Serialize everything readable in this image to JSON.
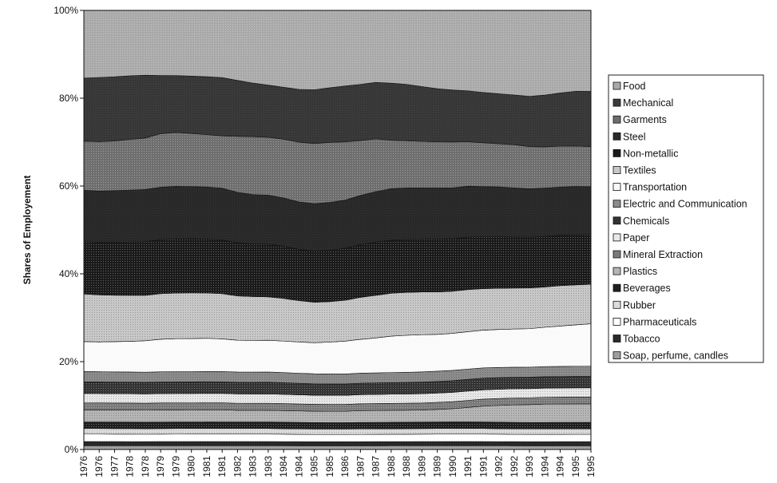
{
  "chart_data": {
    "type": "area",
    "stacked": true,
    "normalized_percent": true,
    "title": "",
    "xlabel": "",
    "ylabel": "Shares of Employement",
    "ylim": [
      0,
      100
    ],
    "y_ticks": [
      "0%",
      "20%",
      "40%",
      "60%",
      "80%",
      "100%"
    ],
    "grid": false,
    "legend_position": "right",
    "x": [
      "1976",
      "1976",
      "1977",
      "1978",
      "1978",
      "1979",
      "1979",
      "1980",
      "1981",
      "1981",
      "1982",
      "1983",
      "1983",
      "1984",
      "1984",
      "1985",
      "1985",
      "1986",
      "1987",
      "1987",
      "1988",
      "1988",
      "1989",
      "1989",
      "1990",
      "1991",
      "1991",
      "1992",
      "1992",
      "1993",
      "1994",
      "1994",
      "1995",
      "1995"
    ],
    "series": [
      {
        "name": "Food",
        "color": "#a9a9a9",
        "values": [
          14.5,
          14.4,
          14.3,
          14.1,
          14.0,
          14.0,
          14.0,
          14.1,
          14.2,
          14.4,
          15.0,
          15.6,
          16.0,
          16.6,
          17.2,
          17.4,
          17.0,
          16.6,
          16.2,
          15.7,
          15.8,
          16.0,
          16.4,
          16.8,
          17.0,
          17.2,
          17.6,
          18.0,
          18.4,
          18.8,
          18.5,
          18.0,
          17.6,
          17.6
        ]
      },
      {
        "name": "Mechanical",
        "color": "#3a3a3a",
        "values": [
          13.5,
          13.8,
          13.8,
          13.7,
          13.6,
          12.5,
          12.2,
          12.3,
          12.4,
          12.5,
          12.0,
          11.5,
          11.2,
          11.2,
          11.5,
          11.8,
          12.0,
          12.3,
          12.3,
          12.3,
          12.4,
          12.2,
          11.8,
          11.4,
          11.1,
          10.9,
          10.8,
          10.8,
          10.8,
          11.0,
          11.3,
          11.6,
          11.9,
          12.0
        ]
      },
      {
        "name": "Garments",
        "color": "#6e6e6e",
        "values": [
          10.5,
          10.6,
          10.7,
          10.9,
          11.1,
          11.5,
          11.6,
          11.4,
          11.2,
          11.2,
          12.0,
          12.4,
          12.4,
          12.7,
          13.0,
          13.2,
          13.2,
          12.8,
          12.0,
          11.5,
          10.5,
          10.2,
          10.0,
          9.9,
          9.8,
          9.5,
          9.4,
          9.3,
          9.4,
          9.2,
          9.0,
          8.9,
          8.8,
          8.7
        ]
      },
      {
        "name": "Steel",
        "color": "#2b2b2b",
        "values": [
          11.0,
          11.0,
          11.1,
          11.2,
          11.3,
          11.3,
          11.3,
          11.2,
          11.2,
          11.1,
          10.8,
          10.6,
          10.5,
          10.4,
          10.3,
          10.4,
          10.5,
          10.6,
          10.8,
          11.0,
          11.2,
          11.2,
          11.1,
          11.0,
          10.9,
          10.9,
          10.8,
          10.8,
          10.7,
          10.6,
          10.6,
          10.5,
          10.5,
          10.4
        ]
      },
      {
        "name": "Non-metallic",
        "color": "#1a1a1a",
        "values": [
          11.2,
          11.3,
          11.4,
          11.5,
          11.6,
          11.6,
          11.6,
          11.6,
          11.5,
          11.5,
          11.4,
          11.3,
          11.3,
          11.3,
          11.2,
          11.2,
          11.3,
          11.4,
          11.5,
          11.6,
          11.5,
          11.4,
          11.3,
          11.3,
          11.2,
          11.2,
          11.1,
          11.1,
          11.1,
          11.1,
          11.0,
          11.0,
          10.9,
          10.8
        ]
      },
      {
        "name": "Textiles",
        "color": "#c8c8c8",
        "values": [
          10.2,
          10.1,
          10.0,
          9.9,
          9.8,
          9.8,
          9.8,
          9.8,
          9.7,
          9.7,
          9.5,
          9.4,
          9.3,
          9.2,
          9.0,
          8.9,
          8.9,
          9.0,
          9.2,
          9.3,
          9.3,
          9.3,
          9.2,
          9.1,
          9.0,
          9.0,
          8.9,
          8.9,
          8.9,
          8.9,
          8.8,
          8.8,
          8.7,
          8.6
        ]
      },
      {
        "name": "Transportation",
        "color": "#fafafa",
        "values": [
          6.4,
          6.4,
          6.5,
          6.6,
          6.8,
          7.0,
          7.1,
          7.1,
          7.1,
          7.0,
          6.8,
          6.8,
          6.8,
          6.8,
          6.8,
          6.8,
          7.0,
          7.2,
          7.4,
          7.6,
          7.9,
          8.0,
          8.0,
          7.9,
          7.9,
          8.0,
          8.1,
          8.2,
          8.3,
          8.4,
          8.6,
          8.8,
          9.0,
          9.2
        ]
      },
      {
        "name": "Electric and Communication",
        "color": "#8c8c8c",
        "values": [
          2.2,
          2.2,
          2.2,
          2.2,
          2.2,
          2.2,
          2.2,
          2.2,
          2.2,
          2.2,
          2.2,
          2.2,
          2.2,
          2.2,
          2.2,
          2.2,
          2.2,
          2.2,
          2.2,
          2.2,
          2.2,
          2.2,
          2.2,
          2.2,
          2.2,
          2.2,
          2.2,
          2.2,
          2.2,
          2.2,
          2.2,
          2.2,
          2.2,
          2.2
        ]
      },
      {
        "name": "Chemicals",
        "color": "#333333",
        "values": [
          2.5,
          2.5,
          2.5,
          2.5,
          2.5,
          2.5,
          2.5,
          2.5,
          2.5,
          2.5,
          2.5,
          2.5,
          2.5,
          2.5,
          2.5,
          2.5,
          2.5,
          2.5,
          2.5,
          2.5,
          2.5,
          2.5,
          2.5,
          2.5,
          2.5,
          2.5,
          2.5,
          2.5,
          2.5,
          2.5,
          2.5,
          2.5,
          2.5,
          2.5
        ]
      },
      {
        "name": "Paper",
        "color": "#e8e8e8",
        "values": [
          2.0,
          2.0,
          2.0,
          2.0,
          2.0,
          2.0,
          2.0,
          2.0,
          2.0,
          2.0,
          2.0,
          2.0,
          2.0,
          2.0,
          2.0,
          2.0,
          2.0,
          2.0,
          2.0,
          2.0,
          2.0,
          2.0,
          2.0,
          2.0,
          2.0,
          2.0,
          2.0,
          2.0,
          2.0,
          2.0,
          2.0,
          2.0,
          2.0,
          2.0
        ]
      },
      {
        "name": "Mineral Extraction",
        "color": "#7a7a7a",
        "values": [
          1.5,
          1.5,
          1.5,
          1.5,
          1.5,
          1.5,
          1.5,
          1.5,
          1.5,
          1.5,
          1.5,
          1.5,
          1.5,
          1.5,
          1.5,
          1.5,
          1.5,
          1.5,
          1.5,
          1.5,
          1.5,
          1.5,
          1.5,
          1.5,
          1.5,
          1.5,
          1.5,
          1.5,
          1.5,
          1.5,
          1.5,
          1.5,
          1.5,
          1.5
        ]
      },
      {
        "name": "Plastics",
        "color": "#b5b5b5",
        "values": [
          2.6,
          2.6,
          2.6,
          2.6,
          2.6,
          2.6,
          2.6,
          2.6,
          2.6,
          2.6,
          2.5,
          2.5,
          2.5,
          2.5,
          2.5,
          2.5,
          2.5,
          2.5,
          2.6,
          2.6,
          2.6,
          2.6,
          2.6,
          2.7,
          2.8,
          3.1,
          3.4,
          3.6,
          3.8,
          3.9,
          4.0,
          4.0,
          4.0,
          4.0
        ]
      },
      {
        "name": "Beverages",
        "color": "#1f1f1f",
        "values": [
          1.4,
          1.4,
          1.4,
          1.4,
          1.4,
          1.4,
          1.4,
          1.4,
          1.4,
          1.4,
          1.4,
          1.4,
          1.4,
          1.4,
          1.4,
          1.4,
          1.4,
          1.4,
          1.4,
          1.4,
          1.4,
          1.4,
          1.4,
          1.4,
          1.4,
          1.4,
          1.4,
          1.4,
          1.4,
          1.4,
          1.4,
          1.4,
          1.4,
          1.4
        ]
      },
      {
        "name": "Rubber",
        "color": "#dcdcdc",
        "values": [
          1.2,
          1.2,
          1.2,
          1.2,
          1.2,
          1.2,
          1.2,
          1.2,
          1.2,
          1.2,
          1.2,
          1.2,
          1.2,
          1.2,
          1.2,
          1.2,
          1.2,
          1.2,
          1.2,
          1.2,
          1.2,
          1.2,
          1.2,
          1.2,
          1.2,
          1.2,
          1.2,
          1.2,
          1.2,
          1.2,
          1.2,
          1.2,
          1.2,
          1.2
        ]
      },
      {
        "name": "Pharmaceuticals",
        "color": "#ffffff",
        "values": [
          1.6,
          1.6,
          1.6,
          1.6,
          1.6,
          1.6,
          1.6,
          1.6,
          1.6,
          1.6,
          1.6,
          1.6,
          1.6,
          1.6,
          1.6,
          1.6,
          1.6,
          1.6,
          1.6,
          1.6,
          1.6,
          1.6,
          1.6,
          1.6,
          1.6,
          1.6,
          1.6,
          1.6,
          1.6,
          1.6,
          1.6,
          1.6,
          1.6,
          1.6
        ]
      },
      {
        "name": "Tobacco",
        "color": "#2a2a2a",
        "values": [
          0.9,
          0.9,
          0.9,
          0.9,
          0.9,
          0.9,
          0.9,
          0.9,
          0.9,
          0.9,
          0.9,
          0.9,
          0.9,
          0.9,
          0.9,
          0.9,
          0.9,
          0.9,
          0.9,
          0.9,
          0.9,
          0.9,
          0.9,
          0.9,
          0.9,
          0.9,
          0.9,
          0.9,
          0.9,
          0.9,
          0.9,
          0.9,
          0.9,
          0.9
        ]
      },
      {
        "name": "Soap, perfume, candles",
        "color": "#9e9e9e",
        "values": [
          0.8,
          0.8,
          0.8,
          0.8,
          0.8,
          0.8,
          0.8,
          0.8,
          0.8,
          0.8,
          0.8,
          0.8,
          0.8,
          0.8,
          0.8,
          0.8,
          0.8,
          0.8,
          0.8,
          0.8,
          0.8,
          0.8,
          0.8,
          0.8,
          0.8,
          0.8,
          0.8,
          0.8,
          0.8,
          0.8,
          0.8,
          0.8,
          0.8,
          0.8
        ]
      }
    ]
  }
}
